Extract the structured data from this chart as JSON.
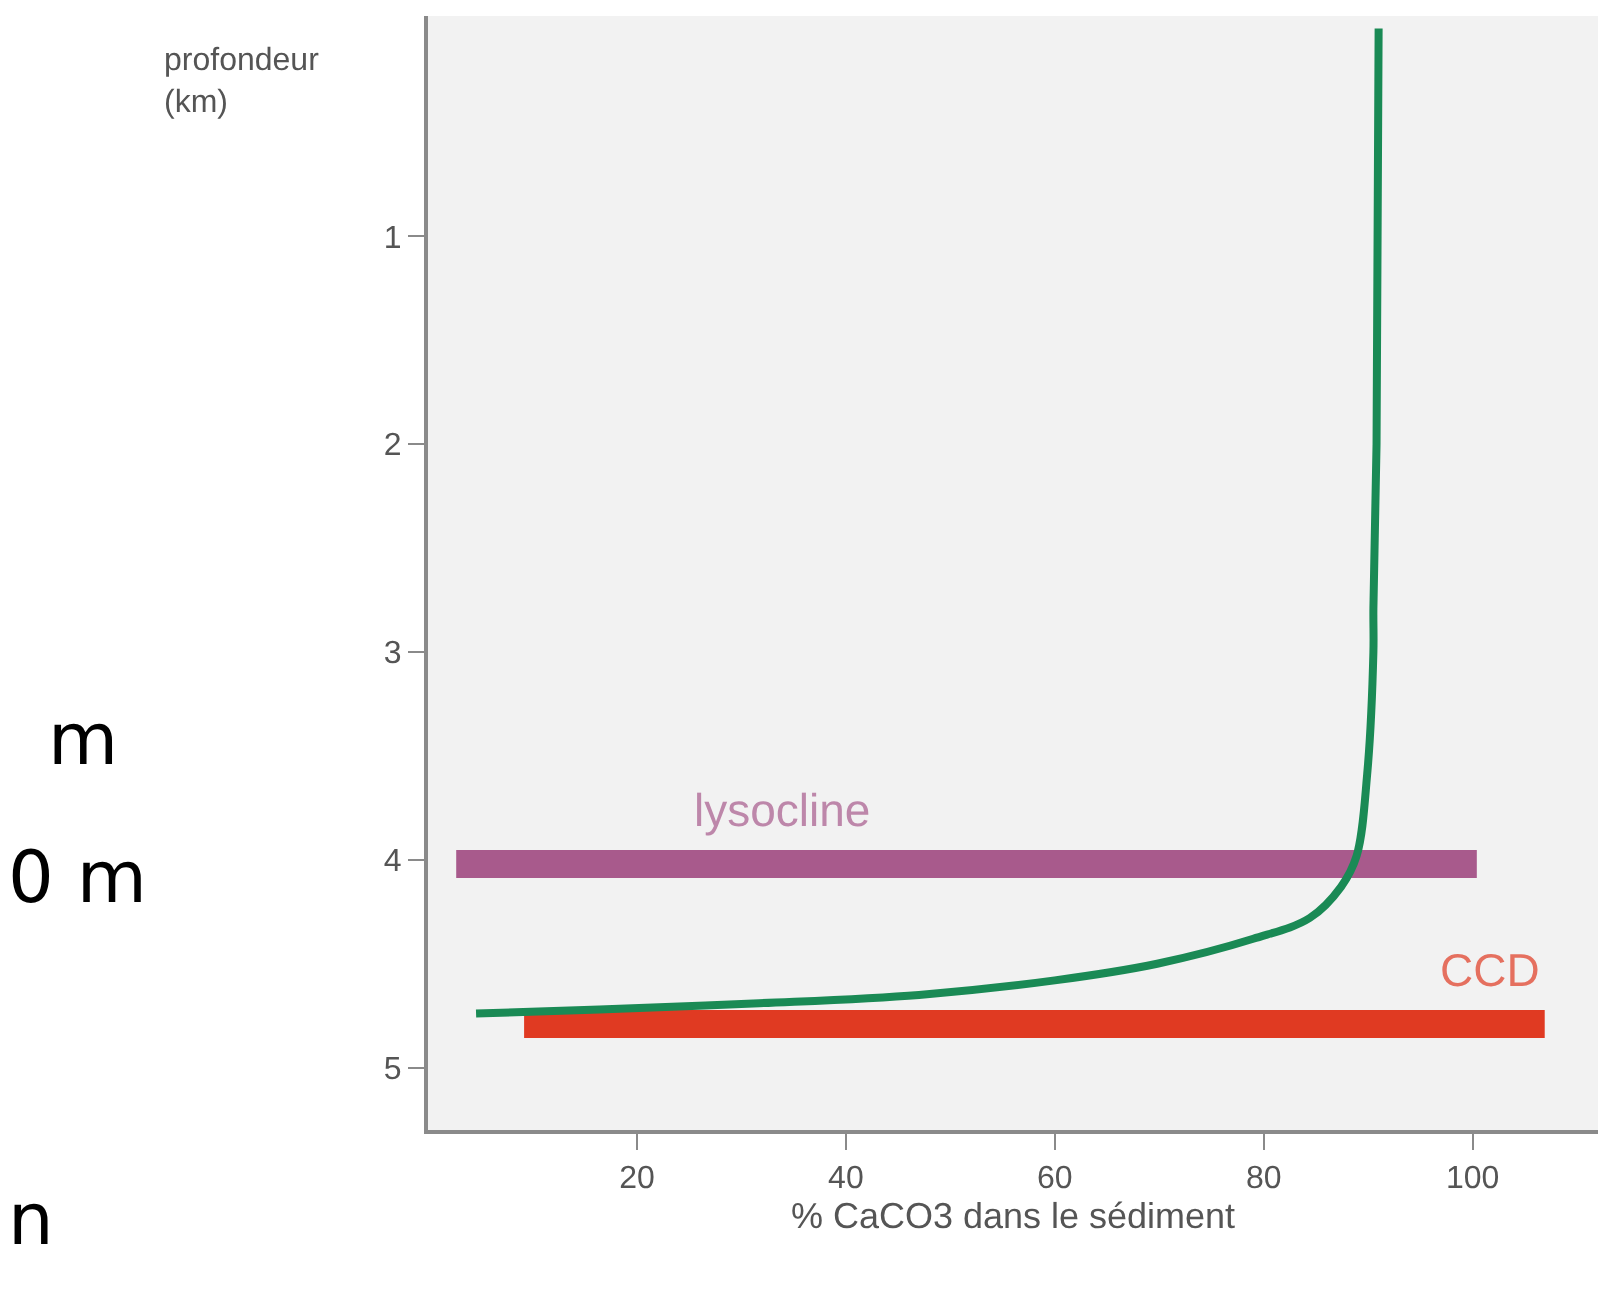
{
  "chart_data": {
    "type": "line",
    "xlabel": "% CaCO3 dans le sédiment",
    "ylabel": "profondeur\n(km)",
    "xlim": [
      0,
      112
    ],
    "xticks": [
      20,
      40,
      60,
      80,
      100
    ],
    "ylim": [
      5.3,
      -0.06
    ],
    "yticks": [
      1,
      2,
      3,
      4,
      5
    ],
    "grid": false,
    "legend": false,
    "marker": "none",
    "line_style": "solid",
    "series": [
      {
        "name": "lysocline",
        "color": "#a85a8c",
        "x": [
          2.7,
          100.4
        ],
        "values": [
          4.02,
          4.02
        ]
      },
      {
        "name": "CCD",
        "color": "#e03a22",
        "x": [
          9.2,
          106.9
        ],
        "values": [
          4.79,
          4.79
        ]
      },
      {
        "color": "#1a8a55",
        "x": [
          4.6,
          16.4,
          31.7,
          47,
          60,
          69.8,
          79,
          84.4,
          87.4,
          88.9,
          89.9,
          90.5,
          90.5,
          90.8,
          91.0
        ],
        "values": [
          4.74,
          4.72,
          4.69,
          4.65,
          4.58,
          4.5,
          4.38,
          4.28,
          4.13,
          3.98,
          3.59,
          3.0,
          2.79,
          2.0,
          0.0
        ]
      }
    ],
    "annotations": [
      "m",
      "0 m",
      "n"
    ]
  }
}
